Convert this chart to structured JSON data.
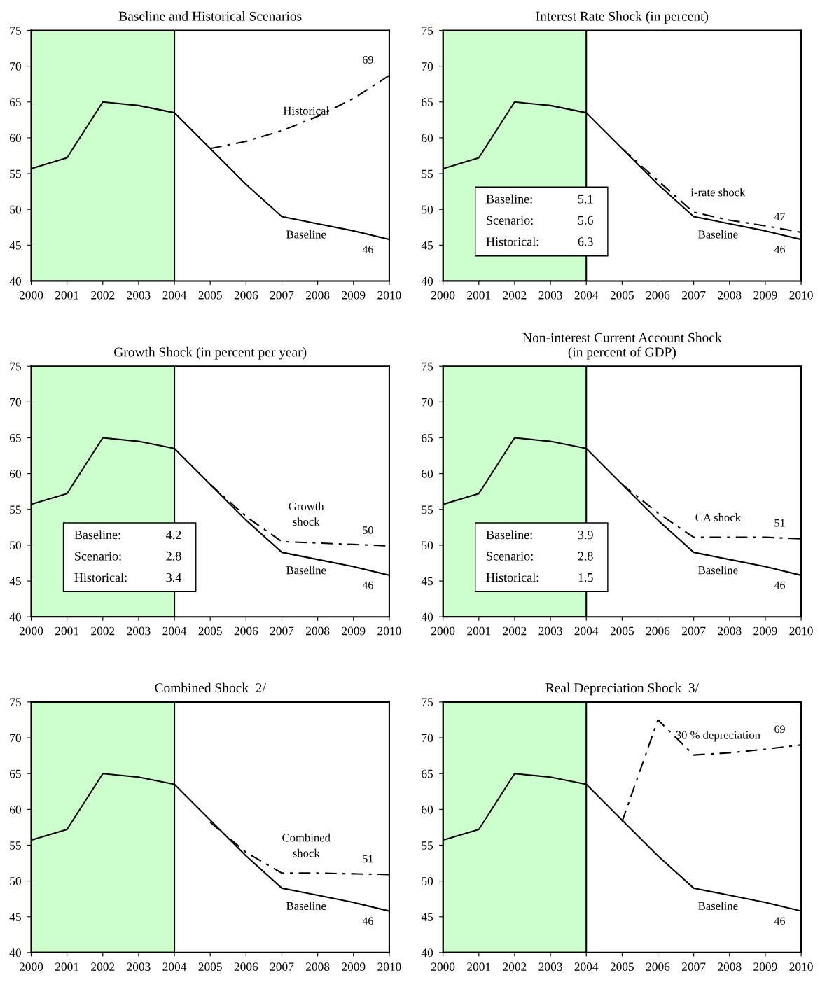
{
  "chart_data": [
    {
      "type": "line",
      "title": "Baseline and Historical Scenarios",
      "x": [
        2000,
        2001,
        2002,
        2003,
        2004,
        2005,
        2006,
        2007,
        2008,
        2009,
        2010
      ],
      "series": [
        {
          "name": "Baseline",
          "color": "#000000",
          "line_style": "solid",
          "values": [
            55.7,
            57.2,
            65.0,
            64.5,
            63.5,
            58.5,
            53.5,
            49.0,
            48.0,
            47.0,
            45.8
          ],
          "value_labels": [
            null,
            null,
            null,
            null,
            null,
            null,
            null,
            null,
            null,
            null,
            "46"
          ]
        },
        {
          "name": "Historical",
          "color": "#000000",
          "line_style": "dashdot",
          "values": [
            null,
            null,
            null,
            null,
            null,
            58.5,
            59.5,
            61.0,
            63.0,
            65.5,
            68.7
          ],
          "value_labels": [
            null,
            null,
            null,
            null,
            null,
            null,
            null,
            null,
            null,
            null,
            "69"
          ]
        }
      ],
      "xlim": [
        2000,
        2010
      ],
      "ylim": [
        40,
        75
      ],
      "xticks": [
        2000,
        2001,
        2002,
        2003,
        2004,
        2005,
        2006,
        2007,
        2008,
        2009,
        2010
      ],
      "yticks": [
        40,
        45,
        50,
        55,
        60,
        65,
        70,
        75
      ],
      "bands": [
        {
          "axis": "x",
          "from": 2000,
          "to": 2004,
          "color": "#ccffcc"
        }
      ]
    },
    {
      "type": "line",
      "title": "Interest Rate Shock (in percent)",
      "x": [
        2000,
        2001,
        2002,
        2003,
        2004,
        2005,
        2006,
        2007,
        2008,
        2009,
        2010
      ],
      "series": [
        {
          "name": "Baseline",
          "color": "#000000",
          "line_style": "solid",
          "values": [
            55.7,
            57.2,
            65.0,
            64.5,
            63.5,
            58.5,
            53.5,
            49.0,
            48.0,
            47.0,
            45.8
          ],
          "value_labels": [
            null,
            null,
            null,
            null,
            null,
            null,
            null,
            null,
            null,
            null,
            "46"
          ]
        },
        {
          "name": "i-rate shock",
          "color": "#000000",
          "line_style": "dashdot",
          "values": [
            null,
            null,
            null,
            null,
            null,
            58.5,
            54.0,
            49.6,
            48.5,
            47.7,
            46.8
          ],
          "value_labels": [
            null,
            null,
            null,
            null,
            null,
            null,
            null,
            null,
            null,
            null,
            "47"
          ]
        }
      ],
      "xlim": [
        2000,
        2010
      ],
      "ylim": [
        40,
        75
      ],
      "xticks": [
        2000,
        2001,
        2002,
        2003,
        2004,
        2005,
        2006,
        2007,
        2008,
        2009,
        2010
      ],
      "yticks": [
        40,
        45,
        50,
        55,
        60,
        65,
        70,
        75
      ],
      "bands": [
        {
          "axis": "x",
          "from": 2000,
          "to": 2004,
          "color": "#ccffcc"
        }
      ],
      "annotations": [
        "Baseline:",
        "5.1",
        "Scenario:",
        "5.6",
        "Historical:",
        "6.3"
      ]
    },
    {
      "type": "line",
      "title": "Growth Shock (in percent per year)",
      "x": [
        2000,
        2001,
        2002,
        2003,
        2004,
        2005,
        2006,
        2007,
        2008,
        2009,
        2010
      ],
      "series": [
        {
          "name": "Baseline",
          "color": "#000000",
          "line_style": "solid",
          "values": [
            55.7,
            57.2,
            65.0,
            64.5,
            63.5,
            58.5,
            53.5,
            49.0,
            48.0,
            47.0,
            45.8
          ],
          "value_labels": [
            null,
            null,
            null,
            null,
            null,
            null,
            null,
            null,
            null,
            null,
            "46"
          ]
        },
        {
          "name": "Growth\nshock",
          "color": "#000000",
          "line_style": "dashdot",
          "values": [
            null,
            null,
            null,
            null,
            null,
            58.5,
            54.0,
            50.5,
            50.3,
            50.1,
            49.9
          ],
          "value_labels": [
            null,
            null,
            null,
            null,
            null,
            null,
            null,
            null,
            null,
            null,
            "50"
          ]
        }
      ],
      "xlim": [
        2000,
        2010
      ],
      "ylim": [
        40,
        75
      ],
      "xticks": [
        2000,
        2001,
        2002,
        2003,
        2004,
        2005,
        2006,
        2007,
        2008,
        2009,
        2010
      ],
      "yticks": [
        40,
        45,
        50,
        55,
        60,
        65,
        70,
        75
      ],
      "bands": [
        {
          "axis": "x",
          "from": 2000,
          "to": 2004,
          "color": "#ccffcc"
        }
      ],
      "annotations": [
        "Baseline:",
        "4.2",
        "Scenario:",
        "2.8",
        "Historical:",
        "3.4"
      ]
    },
    {
      "type": "line",
      "title": "Non-interest Current Account Shock\n(in percent of GDP)",
      "x": [
        2000,
        2001,
        2002,
        2003,
        2004,
        2005,
        2006,
        2007,
        2008,
        2009,
        2010
      ],
      "series": [
        {
          "name": "Baseline",
          "color": "#000000",
          "line_style": "solid",
          "values": [
            55.7,
            57.2,
            65.0,
            64.5,
            63.5,
            58.5,
            53.5,
            49.0,
            48.0,
            47.0,
            45.8
          ],
          "value_labels": [
            null,
            null,
            null,
            null,
            null,
            null,
            null,
            null,
            null,
            null,
            "46"
          ]
        },
        {
          "name": "CA shock",
          "color": "#000000",
          "line_style": "dashdot",
          "values": [
            null,
            null,
            null,
            null,
            null,
            58.5,
            54.5,
            51.1,
            51.1,
            51.1,
            50.9
          ],
          "value_labels": [
            null,
            null,
            null,
            null,
            null,
            null,
            null,
            null,
            null,
            null,
            "51"
          ]
        }
      ],
      "xlim": [
        2000,
        2010
      ],
      "ylim": [
        40,
        75
      ],
      "xticks": [
        2000,
        2001,
        2002,
        2003,
        2004,
        2005,
        2006,
        2007,
        2008,
        2009,
        2010
      ],
      "yticks": [
        40,
        45,
        50,
        55,
        60,
        65,
        70,
        75
      ],
      "bands": [
        {
          "axis": "x",
          "from": 2000,
          "to": 2004,
          "color": "#ccffcc"
        }
      ],
      "annotations": [
        "Baseline:",
        "3.9",
        "Scenario:",
        "2.8",
        "Historical:",
        "1.5"
      ]
    },
    {
      "type": "line",
      "title": "Combined Shock  2/",
      "x": [
        2000,
        2001,
        2002,
        2003,
        2004,
        2005,
        2006,
        2007,
        2008,
        2009,
        2010
      ],
      "series": [
        {
          "name": "Baseline",
          "color": "#000000",
          "line_style": "solid",
          "values": [
            55.7,
            57.2,
            65.0,
            64.5,
            63.5,
            58.5,
            53.5,
            49.0,
            48.0,
            47.0,
            45.8
          ],
          "value_labels": [
            null,
            null,
            null,
            null,
            null,
            null,
            null,
            null,
            null,
            null,
            "46"
          ]
        },
        {
          "name": "Combined\nshock",
          "color": "#000000",
          "line_style": "dashdot",
          "values": [
            null,
            null,
            null,
            null,
            null,
            58.2,
            54.0,
            51.1,
            51.1,
            51.0,
            50.9
          ],
          "value_labels": [
            null,
            null,
            null,
            null,
            null,
            null,
            null,
            null,
            null,
            null,
            "51"
          ]
        }
      ],
      "xlim": [
        2000,
        2010
      ],
      "ylim": [
        40,
        75
      ],
      "xticks": [
        2000,
        2001,
        2002,
        2003,
        2004,
        2005,
        2006,
        2007,
        2008,
        2009,
        2010
      ],
      "yticks": [
        40,
        45,
        50,
        55,
        60,
        65,
        70,
        75
      ],
      "bands": [
        {
          "axis": "x",
          "from": 2000,
          "to": 2004,
          "color": "#ccffcc"
        }
      ]
    },
    {
      "type": "line",
      "title": "Real Depreciation Shock  3/",
      "x": [
        2000,
        2001,
        2002,
        2003,
        2004,
        2005,
        2006,
        2007,
        2008,
        2009,
        2010
      ],
      "series": [
        {
          "name": "Baseline",
          "color": "#000000",
          "line_style": "solid",
          "values": [
            55.7,
            57.2,
            65.0,
            64.5,
            63.5,
            58.5,
            53.5,
            49.0,
            48.0,
            47.0,
            45.8
          ],
          "value_labels": [
            null,
            null,
            null,
            null,
            null,
            null,
            null,
            null,
            null,
            null,
            "46"
          ]
        },
        {
          "name": "30 % depreciation",
          "color": "#000000",
          "line_style": "dashdot",
          "values": [
            null,
            null,
            null,
            null,
            null,
            58.3,
            72.5,
            67.6,
            67.9,
            68.4,
            69.0
          ],
          "value_labels": [
            null,
            null,
            null,
            null,
            null,
            null,
            null,
            null,
            null,
            null,
            "69"
          ]
        }
      ],
      "xlim": [
        2000,
        2010
      ],
      "ylim": [
        40,
        75
      ],
      "xticks": [
        2000,
        2001,
        2002,
        2003,
        2004,
        2005,
        2006,
        2007,
        2008,
        2009,
        2010
      ],
      "yticks": [
        40,
        45,
        50,
        55,
        60,
        65,
        70,
        75
      ],
      "bands": [
        {
          "axis": "x",
          "from": 2000,
          "to": 2004,
          "color": "#ccffcc"
        }
      ]
    }
  ]
}
